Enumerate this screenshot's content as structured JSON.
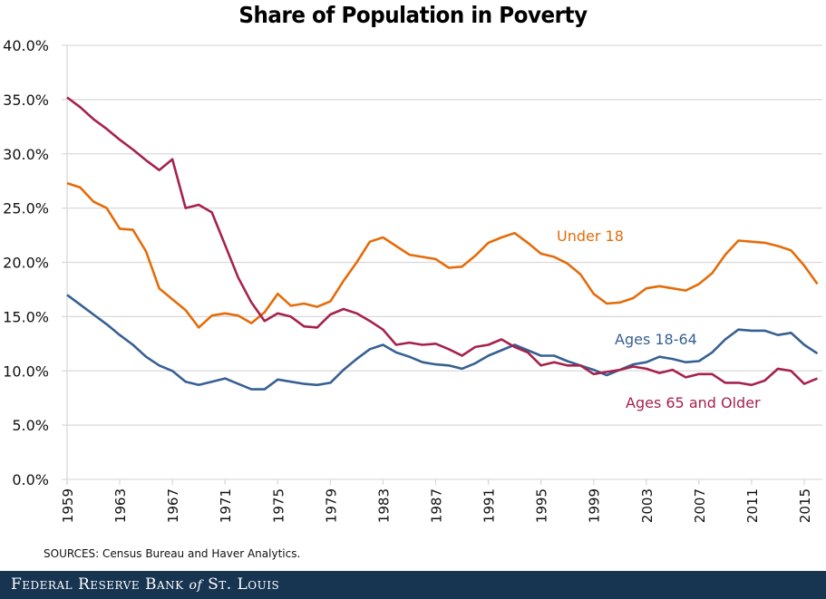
{
  "footer": {
    "brand_main": "Federal Reserve Bank",
    "brand_of": "of",
    "brand_city": "St. Louis"
  },
  "source_note": "SOURCES: Census Bureau and Haver Analytics.",
  "chart_data": {
    "type": "line",
    "title": "Share of Population in Poverty",
    "xlabel": "",
    "ylabel": "",
    "ylim": [
      0,
      40
    ],
    "xlim": [
      1959,
      2016
    ],
    "grid": "horizontal",
    "legend": "inline-labels",
    "y_ticks": [
      "0.0%",
      "5.0%",
      "10.0%",
      "15.0%",
      "20.0%",
      "25.0%",
      "30.0%",
      "35.0%",
      "40.0%"
    ],
    "y_tick_values": [
      0,
      5,
      10,
      15,
      20,
      25,
      30,
      35,
      40
    ],
    "x_ticks": [
      "1959",
      "1963",
      "1967",
      "1971",
      "1975",
      "1979",
      "1983",
      "1987",
      "1991",
      "1995",
      "1999",
      "2003",
      "2007",
      "2011",
      "2015"
    ],
    "x": [
      1959,
      1960,
      1961,
      1962,
      1963,
      1964,
      1965,
      1966,
      1967,
      1968,
      1969,
      1970,
      1971,
      1972,
      1973,
      1974,
      1975,
      1976,
      1977,
      1978,
      1979,
      1980,
      1981,
      1982,
      1983,
      1984,
      1985,
      1986,
      1987,
      1988,
      1989,
      1990,
      1991,
      1992,
      1993,
      1994,
      1995,
      1996,
      1997,
      1998,
      1999,
      2000,
      2001,
      2002,
      2003,
      2004,
      2005,
      2006,
      2007,
      2008,
      2009,
      2010,
      2011,
      2012,
      2013,
      2014,
      2015,
      2016
    ],
    "series": [
      {
        "name": "Under 18",
        "color": "#E46C0A",
        "values": [
          27.3,
          26.9,
          25.6,
          25.0,
          23.1,
          23.0,
          21.0,
          17.6,
          16.6,
          15.6,
          14.0,
          15.1,
          15.3,
          15.1,
          14.4,
          15.4,
          17.1,
          16.0,
          16.2,
          15.9,
          16.4,
          18.3,
          20.0,
          21.9,
          22.3,
          21.5,
          20.7,
          20.5,
          20.3,
          19.5,
          19.6,
          20.6,
          21.8,
          22.3,
          22.7,
          21.8,
          20.8,
          20.5,
          19.9,
          18.9,
          17.1,
          16.2,
          16.3,
          16.7,
          17.6,
          17.8,
          17.6,
          17.4,
          18.0,
          19.0,
          20.7,
          22.0,
          21.9,
          21.8,
          21.5,
          21.1,
          19.7,
          18.0
        ]
      },
      {
        "name": "Ages 18-64",
        "color": "#376092",
        "values": [
          17.0,
          16.1,
          15.2,
          14.3,
          13.3,
          12.4,
          11.3,
          10.5,
          10.0,
          9.0,
          8.7,
          9.0,
          9.3,
          8.8,
          8.3,
          8.3,
          9.2,
          9.0,
          8.8,
          8.7,
          8.9,
          10.1,
          11.1,
          12.0,
          12.4,
          11.7,
          11.3,
          10.8,
          10.6,
          10.5,
          10.2,
          10.7,
          11.4,
          11.9,
          12.4,
          11.9,
          11.4,
          11.4,
          10.9,
          10.5,
          10.1,
          9.6,
          10.1,
          10.6,
          10.8,
          11.3,
          11.1,
          10.8,
          10.9,
          11.7,
          12.9,
          13.8,
          13.7,
          13.7,
          13.3,
          13.5,
          12.4,
          11.6
        ]
      },
      {
        "name": "Ages 65 and Older",
        "color": "#A5224B",
        "values": [
          35.2,
          34.3,
          33.2,
          32.3,
          31.3,
          30.4,
          29.4,
          28.5,
          29.5,
          25.0,
          25.3,
          24.6,
          21.6,
          18.6,
          16.3,
          14.6,
          15.3,
          15.0,
          14.1,
          14.0,
          15.2,
          15.7,
          15.3,
          14.6,
          13.8,
          12.4,
          12.6,
          12.4,
          12.5,
          12.0,
          11.4,
          12.2,
          12.4,
          12.9,
          12.2,
          11.7,
          10.5,
          10.8,
          10.5,
          10.5,
          9.7,
          9.9,
          10.1,
          10.4,
          10.2,
          9.8,
          10.1,
          9.4,
          9.7,
          9.7,
          8.9,
          8.9,
          8.7,
          9.1,
          10.2,
          10.0,
          8.8,
          9.3
        ]
      }
    ]
  }
}
